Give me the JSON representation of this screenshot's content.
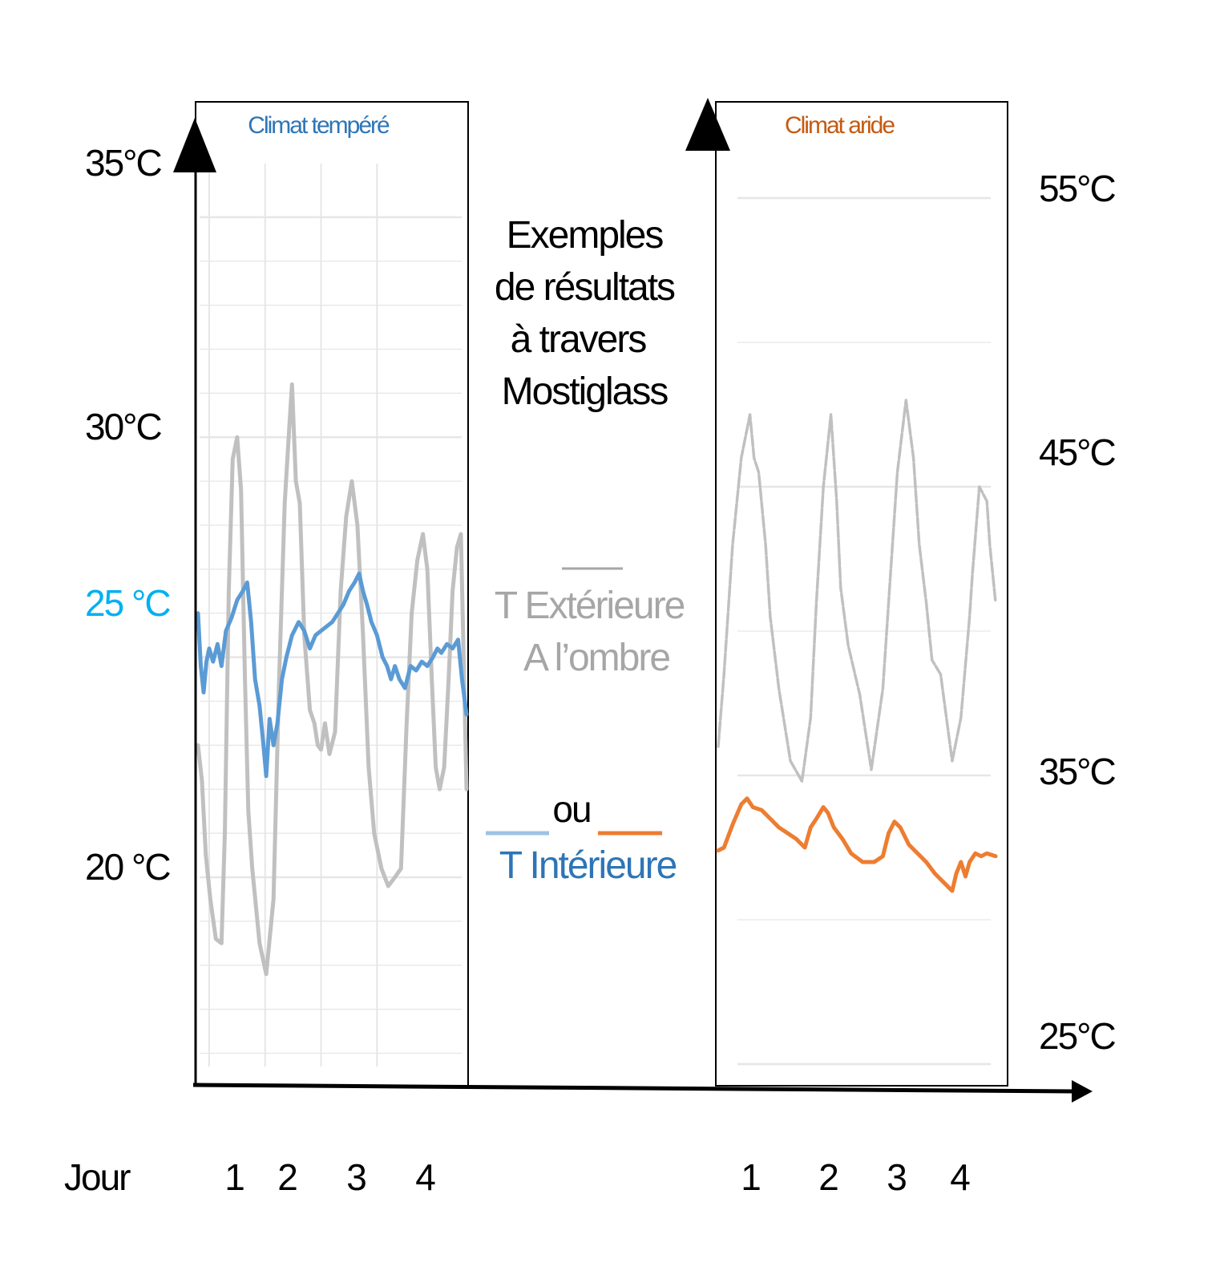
{
  "center_text": {
    "title_lines": [
      "Exemples",
      "de résultats",
      "à travers",
      "Mostiglass"
    ],
    "legend_ext_lines": [
      "T Extérieure",
      "A l’ombre"
    ],
    "legend_or": "ou",
    "legend_int": "T Intérieure"
  },
  "x_axis_label": "Jour",
  "colors": {
    "exterior": "#c0c0c0",
    "interior_temperate": "#5b9bd5",
    "interior_arid": "#ed7d31",
    "title_temperate": "#2e75b6",
    "title_arid": "#c55a11",
    "label_25": "#00b0f0",
    "grid": "#e6e6e6",
    "legend_ext": "#a6a6a6",
    "legend_int_text": "#2e75b6",
    "legend_int_line": "#9dc3e6",
    "axis": "#000000"
  },
  "chart_data": [
    {
      "type": "line",
      "title": "Climat tempéré",
      "y_ticks": [
        "35°C",
        "30°C",
        "25 °C",
        "20 °C"
      ],
      "y_tick_values": [
        35,
        30,
        25,
        20
      ],
      "x_ticks": [
        "1",
        "2",
        "3",
        "4"
      ],
      "x_tick_values": [
        1,
        2,
        3,
        4
      ],
      "xlim": [
        0,
        4.8
      ],
      "ylim": [
        15.7,
        36
      ],
      "grid": true,
      "series": [
        {
          "color_key": "exterior",
          "x": [
            0,
            0.07,
            0.14,
            0.22,
            0.32,
            0.42,
            0.48,
            0.55,
            0.62,
            0.7,
            0.77,
            0.84,
            0.9,
            0.97,
            1.1,
            1.22,
            1.35,
            1.45,
            1.55,
            1.63,
            1.68,
            1.75,
            1.82,
            1.9,
            2.0,
            2.08,
            2.14,
            2.2,
            2.27,
            2.35,
            2.45,
            2.55,
            2.65,
            2.75,
            2.85,
            2.95,
            3.05,
            3.15,
            3.28,
            3.4,
            3.52,
            3.63,
            3.73,
            3.82,
            3.92,
            4.02,
            4.1,
            4.18,
            4.25,
            4.32,
            4.4,
            4.48,
            4.55,
            4.63,
            4.7,
            4.8
          ],
          "y": [
            23.0,
            22.2,
            20.5,
            19.5,
            18.6,
            18.5,
            21.0,
            26.5,
            29.5,
            30.0,
            28.8,
            24.5,
            21.5,
            20.2,
            18.5,
            17.8,
            19.5,
            24.5,
            28.5,
            30.2,
            31.2,
            29.0,
            28.5,
            25.5,
            23.8,
            23.5,
            23.0,
            22.9,
            23.5,
            22.8,
            23.3,
            26.5,
            28.2,
            29.0,
            28.0,
            25.5,
            22.5,
            21.0,
            20.2,
            19.8,
            20.0,
            20.2,
            23.5,
            26.0,
            27.2,
            27.8,
            27.0,
            24.5,
            22.5,
            22.0,
            22.5,
            24.5,
            26.5,
            27.5,
            27.8,
            22.0
          ]
        },
        {
          "color_key": "interior_temperate",
          "x": [
            0,
            0.05,
            0.1,
            0.15,
            0.2,
            0.27,
            0.35,
            0.42,
            0.5,
            0.6,
            0.7,
            0.8,
            0.88,
            0.95,
            1.02,
            1.1,
            1.17,
            1.22,
            1.28,
            1.35,
            1.42,
            1.5,
            1.58,
            1.68,
            1.8,
            1.9,
            2.0,
            2.1,
            2.2,
            2.3,
            2.4,
            2.5,
            2.6,
            2.7,
            2.8,
            2.88,
            2.95,
            3.02,
            3.1,
            3.2,
            3.3,
            3.38,
            3.45,
            3.52,
            3.6,
            3.7,
            3.8,
            3.9,
            4.0,
            4.1,
            4.2,
            4.28,
            4.35,
            4.45,
            4.55,
            4.65,
            4.72,
            4.8
          ],
          "y": [
            26.0,
            24.8,
            24.2,
            24.9,
            25.2,
            24.9,
            25.3,
            24.8,
            25.6,
            25.9,
            26.3,
            26.5,
            26.7,
            25.8,
            24.5,
            23.9,
            23.0,
            22.3,
            23.6,
            23.0,
            23.5,
            24.5,
            25.0,
            25.5,
            25.8,
            25.6,
            25.2,
            25.5,
            25.6,
            25.7,
            25.8,
            26.0,
            26.2,
            26.5,
            26.7,
            26.9,
            26.5,
            26.2,
            25.8,
            25.5,
            25.0,
            24.8,
            24.5,
            24.8,
            24.5,
            24.3,
            24.8,
            24.7,
            24.9,
            24.8,
            25.0,
            25.2,
            25.1,
            25.3,
            25.2,
            25.4,
            24.5,
            23.7
          ]
        }
      ]
    },
    {
      "type": "line",
      "title": "Climat aride",
      "y_ticks": [
        "55°C",
        "45°C",
        "35°C",
        "25°C"
      ],
      "y_tick_values": [
        55,
        45,
        35,
        25
      ],
      "x_ticks": [
        "1",
        "2",
        "3",
        "4"
      ],
      "x_tick_values": [
        1,
        2,
        3,
        4
      ],
      "xlim": [
        0,
        4.8
      ],
      "ylim": [
        25,
        55
      ],
      "grid": true,
      "series": [
        {
          "color_key": "exterior",
          "x": [
            0,
            0.1,
            0.25,
            0.4,
            0.55,
            0.62,
            0.7,
            0.82,
            0.9,
            1.05,
            1.25,
            1.45,
            1.6,
            1.7,
            1.82,
            1.95,
            2.05,
            2.12,
            2.25,
            2.45,
            2.65,
            2.85,
            2.95,
            3.1,
            3.25,
            3.38,
            3.48,
            3.6,
            3.7,
            3.85,
            4.05,
            4.2,
            4.35,
            4.4,
            4.52,
            4.65,
            4.7,
            4.8
          ],
          "y": [
            36.0,
            38.5,
            43.0,
            46.0,
            47.5,
            46.0,
            45.5,
            43.0,
            40.5,
            38.0,
            35.5,
            34.8,
            37.0,
            41.0,
            45.0,
            47.5,
            44.5,
            41.5,
            39.5,
            37.8,
            35.2,
            38.0,
            41.0,
            45.5,
            48.0,
            46.0,
            43.0,
            41.0,
            39.0,
            38.5,
            35.5,
            37.0,
            40.5,
            42.0,
            45.0,
            44.5,
            43.0,
            41.0
          ]
        },
        {
          "color_key": "interior_arid",
          "x": [
            0,
            0.1,
            0.25,
            0.4,
            0.5,
            0.6,
            0.75,
            0.9,
            1.05,
            1.2,
            1.35,
            1.5,
            1.6,
            1.7,
            1.82,
            1.9,
            2.0,
            2.15,
            2.3,
            2.5,
            2.7,
            2.85,
            2.95,
            3.05,
            3.15,
            3.3,
            3.45,
            3.6,
            3.75,
            3.9,
            4.05,
            4.12,
            4.2,
            4.28,
            4.35,
            4.45,
            4.55,
            4.65,
            4.8
          ],
          "y": [
            32.4,
            32.5,
            33.3,
            34.0,
            34.2,
            33.9,
            33.8,
            33.5,
            33.2,
            33.0,
            32.8,
            32.5,
            33.2,
            33.5,
            33.9,
            33.7,
            33.2,
            32.8,
            32.3,
            32.0,
            32.0,
            32.2,
            33.0,
            33.4,
            33.2,
            32.6,
            32.3,
            32.0,
            31.6,
            31.3,
            31.0,
            31.6,
            32.0,
            31.5,
            32.0,
            32.3,
            32.2,
            32.3,
            32.2
          ]
        }
      ]
    }
  ]
}
